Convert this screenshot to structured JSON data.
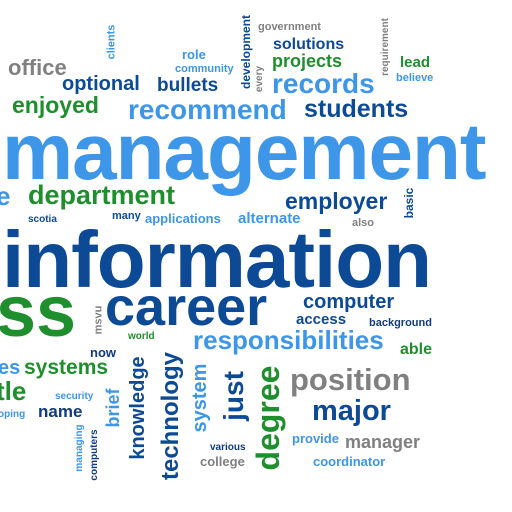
{
  "colors": {
    "light_blue": "#3d96e8",
    "dark_blue": "#0c4a96",
    "navy": "#123a80",
    "green": "#1f8f2e",
    "gray": "#808080"
  },
  "words": {
    "government": "government",
    "solutions": "solutions",
    "requirement": "requirement",
    "clients": "clients",
    "development": "development",
    "role": "role",
    "projects": "projects",
    "lead": "lead",
    "office": "office",
    "community": "community",
    "every": "every",
    "believe": "believe",
    "optional": "optional",
    "bullets": "bullets",
    "records": "records",
    "enjoyed": "enjoyed",
    "recommend": "recommend",
    "students": "students",
    "management": "management",
    "e_fragment": "e",
    "department": "department",
    "employer": "employer",
    "basic": "basic",
    "scotia": "scotia",
    "many": "many",
    "applications": "applications",
    "alternate": "alternate",
    "also": "also",
    "information": "information",
    "ss_fragment": "ss",
    "career": "career",
    "computer": "computer",
    "msvu": "msvu",
    "access": "access",
    "background": "background",
    "world": "world",
    "responsibilities": "responsibilities",
    "es_fragment": "es",
    "systems": "systems",
    "now": "now",
    "able": "able",
    "tle_fragment": "tle",
    "knowledge": "knowledge",
    "technology": "technology",
    "system": "system",
    "just": "just",
    "degree": "degree",
    "position": "position",
    "security": "security",
    "brief": "brief",
    "major": "major",
    "oping_fragment": "oping",
    "name": "name",
    "managing": "managing",
    "computers": "computers",
    "various": "various",
    "provide": "provide",
    "manager": "manager",
    "college": "college",
    "coordinator": "coordinator"
  }
}
